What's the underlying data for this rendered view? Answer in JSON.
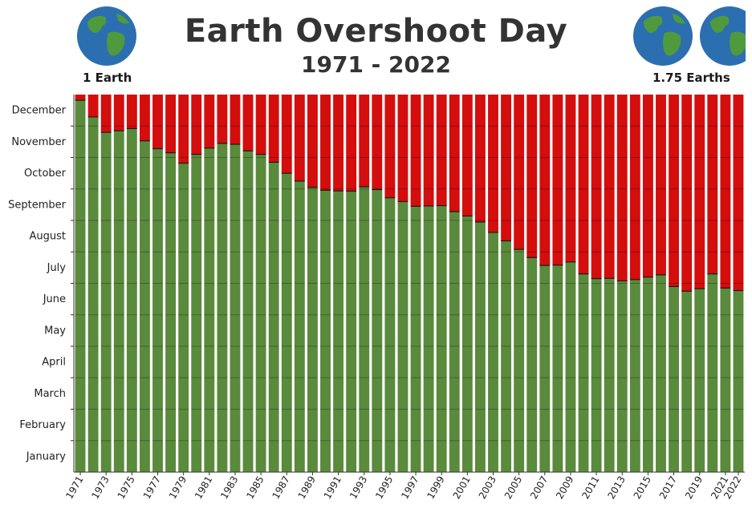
{
  "title": "Earth Overshoot Day",
  "subtitle": "1971 - 2022",
  "globes": {
    "left_label": "1 Earth",
    "right_label": "1.75 Earths",
    "ocean_color": "#2c6fb0",
    "land_color": "#4f9a3c"
  },
  "colors": {
    "before_overshoot": "#5a8a3c",
    "after_overshoot": "#d40d0d",
    "bar_outline": "#1a1a1a"
  },
  "chart_data": {
    "type": "bar",
    "stacked": true,
    "title": "Earth Overshoot Day",
    "subtitle": "1971 - 2022",
    "xlabel": "",
    "ylabel": "",
    "y_unit": "month",
    "ylim": [
      0,
      12
    ],
    "y_tick_labels": [
      "January",
      "February",
      "March",
      "April",
      "May",
      "June",
      "July",
      "August",
      "September",
      "October",
      "November",
      "December"
    ],
    "x_tick_labels": [
      "1971",
      "1973",
      "1975",
      "1977",
      "1979",
      "1981",
      "1983",
      "1985",
      "1987",
      "1989",
      "1991",
      "1993",
      "1995",
      "1997",
      "1999",
      "2001",
      "2003",
      "2005",
      "2007",
      "2009",
      "2011",
      "2013",
      "2015",
      "2017",
      "2019",
      "2021",
      "2022"
    ],
    "grid": false,
    "legend": "none",
    "categories": [
      "1971",
      "1972",
      "1973",
      "1974",
      "1975",
      "1976",
      "1977",
      "1978",
      "1979",
      "1980",
      "1981",
      "1982",
      "1983",
      "1984",
      "1985",
      "1986",
      "1987",
      "1988",
      "1989",
      "1990",
      "1991",
      "1992",
      "1993",
      "1994",
      "1995",
      "1996",
      "1997",
      "1998",
      "1999",
      "2000",
      "2001",
      "2002",
      "2003",
      "2004",
      "2005",
      "2006",
      "2007",
      "2008",
      "2009",
      "2010",
      "2011",
      "2012",
      "2013",
      "2014",
      "2015",
      "2016",
      "2017",
      "2018",
      "2019",
      "2020",
      "2021",
      "2022"
    ],
    "series": [
      {
        "values": [
          11.82,
          11.29,
          10.8,
          10.85,
          10.92,
          10.53,
          10.28,
          10.15,
          9.82,
          10.1,
          10.3,
          10.45,
          10.42,
          10.21,
          10.1,
          9.85,
          9.5,
          9.25,
          9.05,
          8.96,
          8.94,
          8.93,
          9.07,
          8.98,
          8.72,
          8.6,
          8.45,
          8.46,
          8.47,
          8.28,
          8.14,
          7.95,
          7.62,
          7.35,
          7.08,
          6.82,
          6.57,
          6.58,
          6.68,
          6.3,
          6.15,
          6.16,
          6.08,
          6.12,
          6.2,
          6.27,
          5.9,
          5.75,
          5.83,
          6.3,
          5.85,
          5.77
        ]
      }
    ]
  }
}
